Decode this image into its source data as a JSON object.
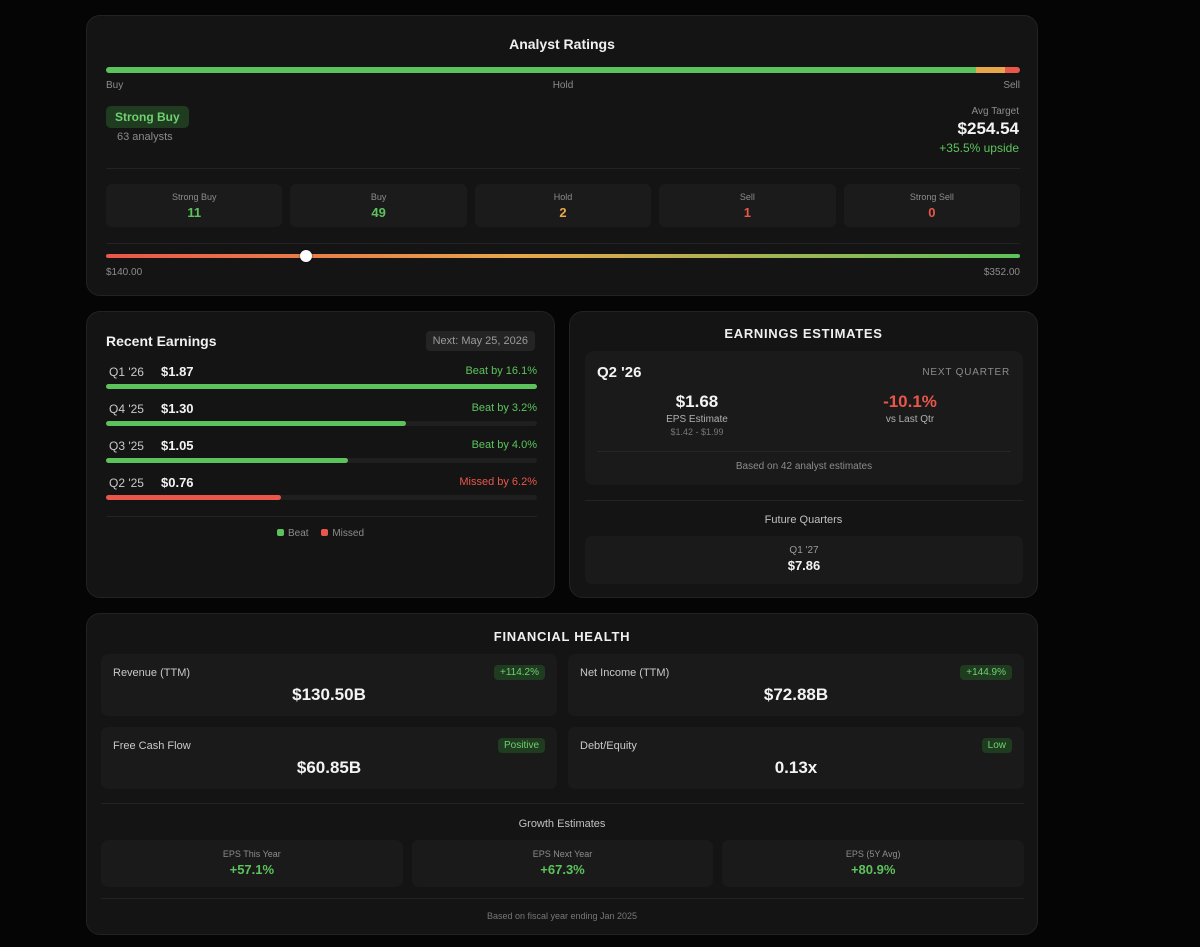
{
  "analyst_ratings": {
    "title": "Analyst Ratings",
    "distribution": {
      "buy_pct": 95.2,
      "hold_pct": 3.2,
      "sell_pct": 1.6
    },
    "scale_labels": {
      "buy": "Buy",
      "hold": "Hold",
      "sell": "Sell"
    },
    "consensus": "Strong Buy",
    "analyst_count": "63 analysts",
    "avg_target_label": "Avg Target",
    "avg_target_value": "$254.54",
    "upside": "+35.5% upside",
    "breakdown": [
      {
        "label": "Strong Buy",
        "value": "11"
      },
      {
        "label": "Buy",
        "value": "49"
      },
      {
        "label": "Hold",
        "value": "2"
      },
      {
        "label": "Sell",
        "value": "1"
      },
      {
        "label": "Strong Sell",
        "value": "0"
      }
    ],
    "price_range": {
      "low": "$140.00",
      "high": "$352.00",
      "marker_fraction": 0.219
    }
  },
  "recent_earnings": {
    "title": "Recent Earnings",
    "next_date": "Next: May 25, 2026",
    "rows": [
      {
        "quarter": "Q1 '26",
        "eps": "$1.87",
        "result": "Beat by 16.1%",
        "status": "beat",
        "fill_pct": 100
      },
      {
        "quarter": "Q4 '25",
        "eps": "$1.30",
        "result": "Beat by 3.2%",
        "status": "beat",
        "fill_pct": 69.5
      },
      {
        "quarter": "Q3 '25",
        "eps": "$1.05",
        "result": "Beat by 4.0%",
        "status": "beat",
        "fill_pct": 56.1
      },
      {
        "quarter": "Q2 '25",
        "eps": "$0.76",
        "result": "Missed by 6.2%",
        "status": "missed",
        "fill_pct": 40.6
      }
    ],
    "legend": {
      "beat": "Beat",
      "missed": "Missed"
    }
  },
  "earnings_estimates": {
    "title": "EARNINGS ESTIMATES",
    "quarter": "Q2 '26",
    "tag": "NEXT QUARTER",
    "eps_estimate": "$1.68",
    "eps_label": "EPS Estimate",
    "eps_range": "$1.42 - $1.99",
    "change": "-10.1%",
    "change_label": "vs Last Qtr",
    "basis": "Based on 42 analyst estimates",
    "future_title": "Future Quarters",
    "future": [
      {
        "quarter": "Q1 '27",
        "value": "$7.86"
      }
    ]
  },
  "financial_health": {
    "title": "FINANCIAL HEALTH",
    "metrics": [
      {
        "label": "Revenue (TTM)",
        "badge": "+114.2%",
        "value": "$130.50B"
      },
      {
        "label": "Net Income (TTM)",
        "badge": "+144.9%",
        "value": "$72.88B"
      },
      {
        "label": "Free Cash Flow",
        "badge": "Positive",
        "value": "$60.85B"
      },
      {
        "label": "Debt/Equity",
        "badge": "Low",
        "value": "0.13x"
      }
    ],
    "growth_title": "Growth Estimates",
    "growth": [
      {
        "label": "EPS This Year",
        "value": "+57.1%"
      },
      {
        "label": "EPS Next Year",
        "value": "+67.3%"
      },
      {
        "label": "EPS (5Y Avg)",
        "value": "+80.9%"
      }
    ],
    "footnote": "Based on fiscal year ending Jan 2025"
  },
  "colors": {
    "positive": "#5cc35c",
    "negative": "#e9564a",
    "warning": "#e8a64a",
    "background": "#050505",
    "card": "#141414"
  }
}
